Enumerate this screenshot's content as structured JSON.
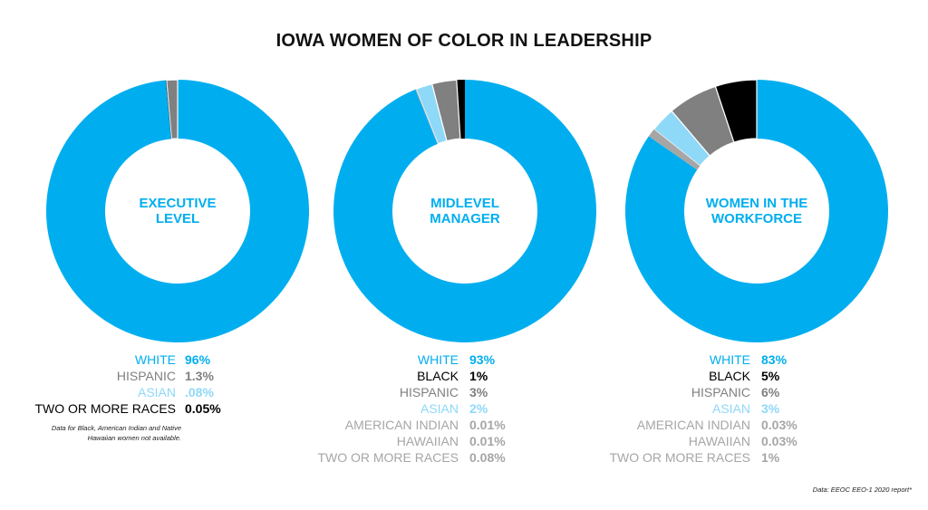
{
  "title": "IOWA WOMEN OF COLOR IN LEADERSHIP",
  "colors": {
    "white": "#00aeef",
    "black": "#000000",
    "hispanic": "#808080",
    "asian": "#8ed8f8",
    "minor": "#a6a6a6",
    "two_or_more": "#a6a6a6"
  },
  "chart_data": [
    {
      "type": "pie",
      "center_label": [
        "EXECUTIVE",
        "LEVEL"
      ],
      "slices": [
        {
          "label": "WHITE",
          "value": 96,
          "display": "96%",
          "color": "#00aeef"
        },
        {
          "label": "HISPANIC",
          "value": 1.3,
          "display": "1.3%",
          "color": "#808080"
        },
        {
          "label": "ASIAN",
          "value": 0.08,
          "display": ".08%",
          "color": "#8ed8f8"
        },
        {
          "label": "TWO OR MORE RACES",
          "value": 0.05,
          "display": "0.05%",
          "color": "#000000"
        }
      ],
      "note": "Data for Black, American Indian and Native Hawaiian women not available."
    },
    {
      "type": "pie",
      "center_label": [
        "MIDLEVEL",
        "MANAGER"
      ],
      "slices": [
        {
          "label": "WHITE",
          "value": 93,
          "display": "93%",
          "color": "#00aeef"
        },
        {
          "label": "BLACK",
          "value": 1,
          "display": "1%",
          "color": "#000000"
        },
        {
          "label": "HISPANIC",
          "value": 3,
          "display": "3%",
          "color": "#808080"
        },
        {
          "label": "ASIAN",
          "value": 2,
          "display": "2%",
          "color": "#8ed8f8"
        },
        {
          "label": "AMERICAN INDIAN",
          "value": 0.01,
          "display": "0.01%",
          "color": "#a6a6a6"
        },
        {
          "label": "HAWAIIAN",
          "value": 0.01,
          "display": "0.01%",
          "color": "#a6a6a6"
        },
        {
          "label": "TWO OR MORE RACES",
          "value": 0.08,
          "display": "0.08%",
          "color": "#a6a6a6"
        }
      ]
    },
    {
      "type": "pie",
      "center_label": [
        "WOMEN IN THE",
        "WORKFORCE"
      ],
      "slices": [
        {
          "label": "WHITE",
          "value": 83,
          "display": "83%",
          "color": "#00aeef"
        },
        {
          "label": "BLACK",
          "value": 5,
          "display": "5%",
          "color": "#000000"
        },
        {
          "label": "HISPANIC",
          "value": 6,
          "display": "6%",
          "color": "#808080"
        },
        {
          "label": "ASIAN",
          "value": 3,
          "display": "3%",
          "color": "#8ed8f8"
        },
        {
          "label": "AMERICAN INDIAN",
          "value": 0.03,
          "display": "0.03%",
          "color": "#a6a6a6"
        },
        {
          "label": "HAWAIIAN",
          "value": 0.03,
          "display": "0.03%",
          "color": "#a6a6a6"
        },
        {
          "label": "TWO OR MORE RACES",
          "value": 1,
          "display": "1%",
          "color": "#a6a6a6"
        }
      ]
    }
  ],
  "source": "Data: EEOC EEO-1 2020 report*"
}
